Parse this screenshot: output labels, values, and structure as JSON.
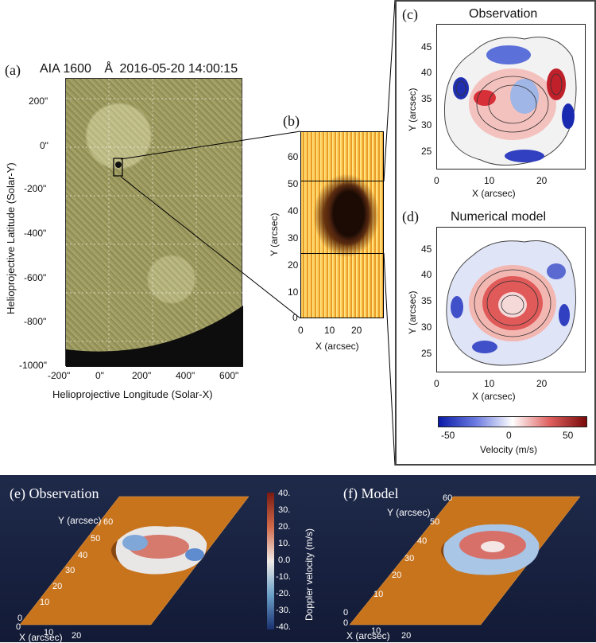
{
  "panel_a": {
    "label": "(a)",
    "title_instrument": "AIA 1600",
    "title_unit": "Å",
    "title_datetime": "2016-05-20  14:00:15",
    "y_axis_label": "Helioprojective Latitude (Solar-Y)",
    "x_axis_label": "Helioprojective Longitude (Solar-X)",
    "y_ticks": [
      "200\"",
      "0\"",
      "-200\"",
      "-400\"",
      "-600\"",
      "-800\"",
      "-1000\""
    ],
    "x_ticks": [
      "-200\"",
      "0\"",
      "200\"",
      "400\"",
      "600\""
    ]
  },
  "panel_b": {
    "label": "(b)",
    "y_axis_label": "Y (arcsec)",
    "x_axis_label": "X (arcsec)",
    "y_ticks": [
      "60",
      "50",
      "40",
      "30",
      "20",
      "10",
      "0"
    ],
    "x_ticks": [
      "0",
      "10",
      "20"
    ]
  },
  "panel_c": {
    "label": "(c)",
    "title": "Observation",
    "y_axis_label": "Y (arcsec)",
    "x_axis_label": "X (arcsec)",
    "y_ticks": [
      "45",
      "40",
      "35",
      "30",
      "25"
    ],
    "x_ticks": [
      "0",
      "10",
      "20"
    ]
  },
  "panel_d": {
    "label": "(d)",
    "title": "Numerical model",
    "y_axis_label": "Y (arcsec)",
    "x_axis_label": "X (arcsec)",
    "y_ticks": [
      "45",
      "40",
      "35",
      "30",
      "25"
    ],
    "x_ticks": [
      "0",
      "10",
      "20"
    ]
  },
  "colorbar_cd": {
    "ticks": [
      "-50",
      "0",
      "50"
    ],
    "label": "Velocity (m/s)",
    "colors": [
      "#0a1aa8",
      "#ffffff",
      "#7a0a0a"
    ]
  },
  "panel_e": {
    "label": "(e) Observation",
    "y_axis_label": "Y (arcsec)",
    "x_axis_label": "X (arcsec)",
    "y_ticks": [
      "60",
      "50",
      "40",
      "30",
      "20",
      "10",
      "0"
    ],
    "x_ticks": [
      "0",
      "10",
      "20"
    ]
  },
  "panel_f": {
    "label": "(f) Model",
    "y_axis_label": "Y (arcsec)",
    "x_axis_label": "X (arcsec)",
    "y_ticks": [
      "60",
      "50",
      "40",
      "30",
      "20",
      "10",
      "0"
    ],
    "x_ticks": [
      "0",
      "10",
      "20"
    ]
  },
  "colorbar_ef": {
    "ticks": [
      "40.",
      "30.",
      "20.",
      "10.",
      "0.0",
      "-10.",
      "-20.",
      "-30.",
      "-40."
    ],
    "label": "Doppler velocity (m/s)"
  }
}
